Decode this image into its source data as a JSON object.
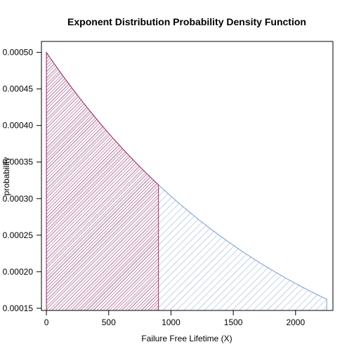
{
  "chart_data": {
    "type": "area",
    "title": "Exponent Distribution Probability Density Function",
    "xlabel": "Failure Free Lifetime (X)",
    "ylabel": "probability",
    "xlim": [
      -40,
      2300
    ],
    "ylim": [
      0.000147,
      0.000515
    ],
    "x_ticks": [
      {
        "value": 0,
        "label": "0"
      },
      {
        "value": 500,
        "label": "500"
      },
      {
        "value": 1000,
        "label": "1000"
      },
      {
        "value": 1500,
        "label": "1500"
      },
      {
        "value": 2000,
        "label": "2000"
      }
    ],
    "y_ticks": [
      {
        "value": 0.00015,
        "label": "0.00015"
      },
      {
        "value": 0.0002,
        "label": "0.00020"
      },
      {
        "value": 0.00025,
        "label": "0.00025"
      },
      {
        "value": 0.0003,
        "label": "0.00030"
      },
      {
        "value": 0.00035,
        "label": "0.00035"
      },
      {
        "value": 0.0004,
        "label": "0.00040"
      },
      {
        "value": 0.00045,
        "label": "0.00045"
      },
      {
        "value": 0.0005,
        "label": "0.00050"
      }
    ],
    "rate": 0.0005,
    "series": [
      {
        "x_range": [
          0,
          2250
        ],
        "color": "#6f8fcf"
      },
      {
        "x_range": [
          0,
          900
        ],
        "color": "#9b1a55"
      }
    ],
    "grid": false,
    "legend": "none"
  }
}
